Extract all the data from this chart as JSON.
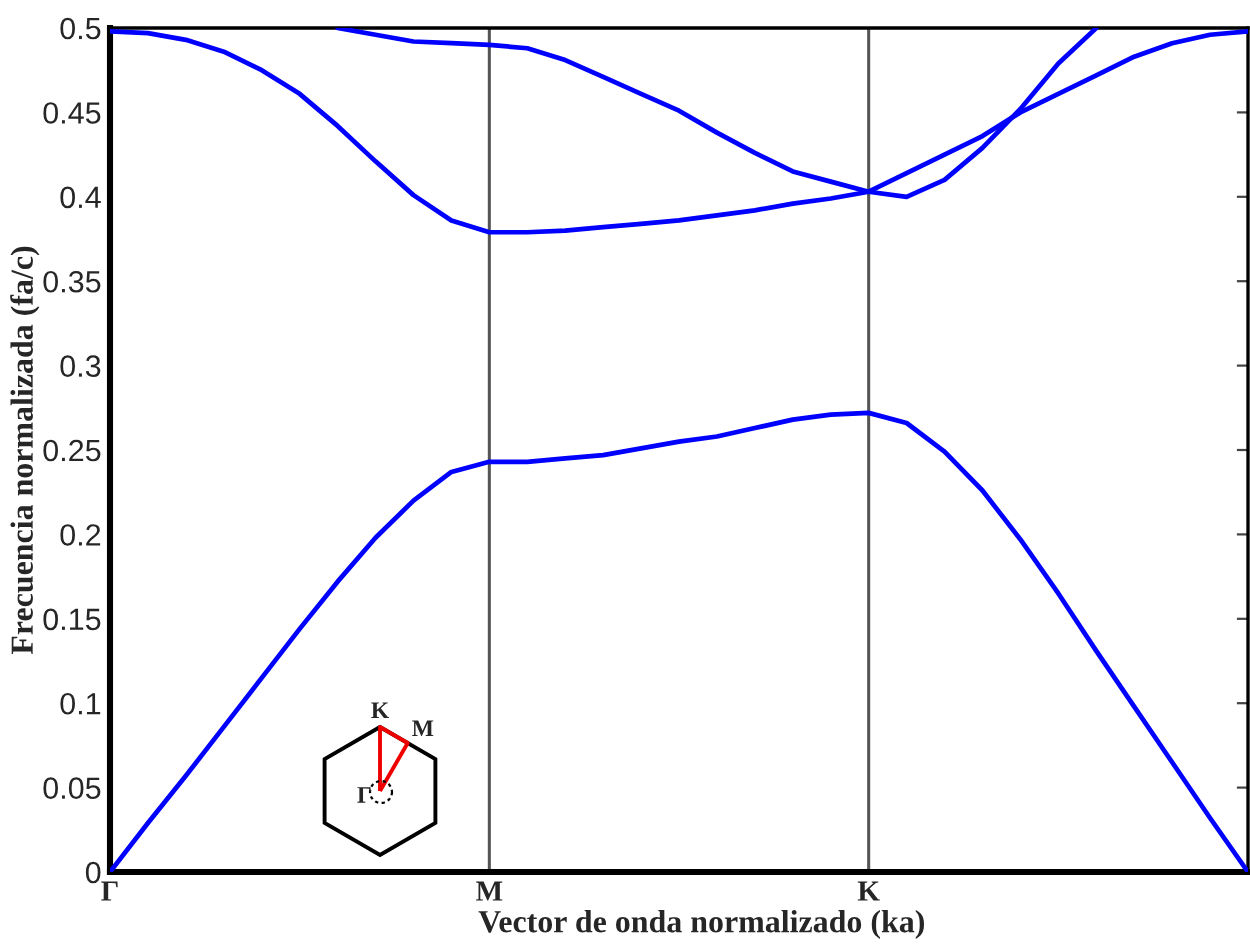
{
  "chart_data": {
    "type": "line",
    "xlabel": "Vector de onda normalizado (ka)",
    "ylabel": "Frecuencia normalizada (fa/c)",
    "categories": [
      "Γ",
      null,
      null,
      null,
      null,
      null,
      null,
      null,
      null,
      null,
      "M",
      null,
      null,
      null,
      null,
      null,
      null,
      null,
      null,
      null,
      "K",
      null,
      null,
      null,
      null,
      null,
      null,
      null,
      null,
      null,
      null
    ],
    "ylim": [
      0,
      0.5
    ],
    "yticks": [
      0,
      0.05,
      0.1,
      0.15,
      0.2,
      0.25,
      0.3,
      0.35,
      0.4,
      0.45,
      0.5
    ],
    "grid": "x",
    "marker": "none",
    "line_style": "solid",
    "annotations": [
      "K",
      "M",
      "Γ"
    ],
    "series": [
      {
        "color": "#0000ff",
        "values": [
          0,
          0.029,
          0.057,
          0.086,
          0.115,
          0.144,
          0.172,
          0.198,
          0.22,
          0.237,
          0.243,
          0.243,
          0.245,
          0.247,
          0.251,
          0.255,
          0.258,
          0.263,
          0.268,
          0.271,
          0.272,
          0.266,
          0.249,
          0.226,
          0.197,
          0.165,
          0.131,
          0.098,
          0.065,
          0.032,
          0
        ]
      },
      {
        "color": "#0000ff",
        "values": [
          0.498,
          0.497,
          0.493,
          0.486,
          0.475,
          0.461,
          0.442,
          0.421,
          0.401,
          0.386,
          0.379,
          0.379,
          0.38,
          0.382,
          0.384,
          0.386,
          0.389,
          0.392,
          0.396,
          0.399,
          0.403,
          0.4,
          0.41,
          0.429,
          0.452,
          0.479,
          0.5,
          null,
          null,
          null,
          null
        ]
      },
      {
        "color": "#0000ff",
        "values": [
          null,
          null,
          null,
          null,
          null,
          null,
          0.5,
          0.496,
          0.492,
          0.491,
          0.49,
          0.488,
          0.481,
          0.471,
          0.461,
          0.451,
          0.438,
          0.426,
          0.415,
          0.409,
          0.403,
          0.414,
          0.425,
          0.436,
          0.45,
          0.461,
          0.472,
          0.483,
          0.491,
          0.496,
          0.498
        ]
      }
    ]
  }
}
